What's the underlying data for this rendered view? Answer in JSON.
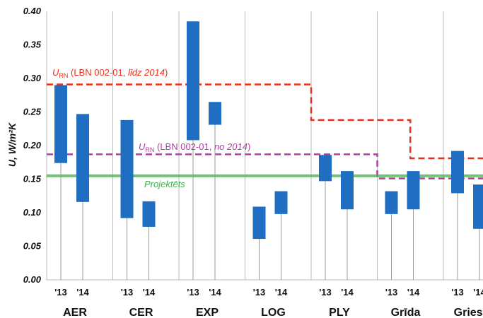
{
  "chart_data": {
    "type": "bar",
    "subtype": "floating-range",
    "ylabel": "U, W/m²K",
    "ylim": [
      0,
      0.4
    ],
    "yticks": [
      "0.00",
      "0.05",
      "0.10",
      "0.15",
      "0.20",
      "0.25",
      "0.30",
      "0.35",
      "0.40"
    ],
    "grid": "vertical",
    "groups": [
      {
        "name": "AER",
        "bars": [
          {
            "year": "'13",
            "low": 0.174,
            "high": 0.29
          },
          {
            "year": "'14",
            "low": 0.116,
            "high": 0.247
          }
        ]
      },
      {
        "name": "CER",
        "bars": [
          {
            "year": "'13",
            "low": 0.092,
            "high": 0.238
          },
          {
            "year": "'14",
            "low": 0.079,
            "high": 0.117
          }
        ]
      },
      {
        "name": "EXP",
        "bars": [
          {
            "year": "'13",
            "low": 0.208,
            "high": 0.385
          },
          {
            "year": "'14",
            "low": 0.231,
            "high": 0.265
          }
        ]
      },
      {
        "name": "LOG",
        "bars": [
          {
            "year": "'13",
            "low": 0.061,
            "high": 0.109
          },
          {
            "year": "'14",
            "low": 0.098,
            "high": 0.132
          }
        ]
      },
      {
        "name": "PLY",
        "bars": [
          {
            "year": "'13",
            "low": 0.147,
            "high": 0.186
          },
          {
            "year": "'14",
            "low": 0.105,
            "high": 0.162
          }
        ]
      },
      {
        "name": "Grīda",
        "bars": [
          {
            "year": "'13",
            "low": 0.098,
            "high": 0.132
          },
          {
            "year": "'14",
            "low": 0.105,
            "high": 0.162
          }
        ]
      },
      {
        "name": "Griesti",
        "bars": [
          {
            "year": "'13",
            "low": 0.129,
            "high": 0.192
          },
          {
            "year": "'14",
            "low": 0.076,
            "high": 0.142
          }
        ]
      }
    ],
    "reference_lines": [
      {
        "label_sym": "U",
        "label_sub": "RN",
        "label_main": " (LBN 002-01, ",
        "label_em": "līdz 2014",
        "label_tail": ")",
        "color": "#e8301c",
        "style": "dashed",
        "steps": [
          {
            "from": 0,
            "to": 4,
            "value": 0.291
          },
          {
            "from": 4,
            "to": 5.5,
            "value": 0.238
          },
          {
            "from": 5.5,
            "to": 7,
            "value": 0.181
          }
        ]
      },
      {
        "label_sym": "U",
        "label_sub": "RN",
        "label_main": " (LBN 002-01, ",
        "label_em": "no 2014",
        "label_tail": ")",
        "color": "#b23ea3",
        "style": "dashed",
        "steps": [
          {
            "from": 0,
            "to": 5,
            "value": 0.187
          },
          {
            "from": 5,
            "to": 7,
            "value": 0.151
          }
        ]
      },
      {
        "label": "Projektēts",
        "color": "#3fae49",
        "style": "solid",
        "steps": [
          {
            "from": 0,
            "to": 7,
            "value": 0.155
          }
        ]
      }
    ],
    "colors": {
      "bar": "#1f6ec2",
      "stem": "#9a9a9a",
      "grid": "#bdbdbd",
      "text": "#111111"
    }
  }
}
